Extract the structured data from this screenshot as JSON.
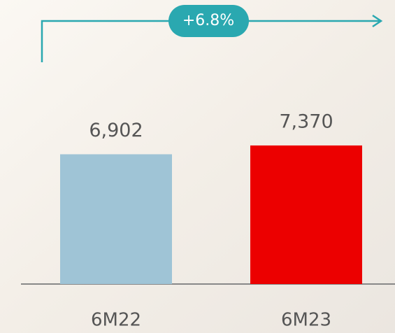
{
  "chart_data": {
    "type": "bar",
    "categories": [
      "6M22",
      "6M23"
    ],
    "values": [
      6902,
      7370
    ],
    "value_labels": [
      "6,902",
      "7,370"
    ],
    "colors": [
      "#9fc4d6",
      "#ec0000"
    ],
    "annotation": "+6.8%",
    "ylim": [
      0,
      8000
    ]
  }
}
